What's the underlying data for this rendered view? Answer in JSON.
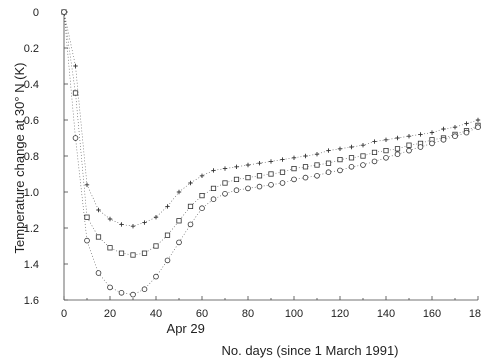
{
  "chart_data": {
    "type": "scatter",
    "title": "",
    "xlabel": "No. days (since 1 March 1991)",
    "ylabel": "Temperature change at 30° N (K)",
    "xlim": [
      0,
      180
    ],
    "ylim": [
      0,
      1.6
    ],
    "y_inverted": true,
    "grid": false,
    "x_ticks": [
      "0",
      "20",
      "40",
      "60",
      "80",
      "100",
      "120",
      "140",
      "160",
      "180"
    ],
    "y_ticks": [
      "0",
      "0.2",
      "0.4",
      "0.6",
      "0.8",
      "1.0",
      "1.2",
      "1.4",
      "1.6"
    ],
    "annotation": "Apr 29",
    "annotation_x": 59,
    "series": [
      {
        "marker": "plus",
        "fit_curve": true,
        "x": [
          0,
          5,
          10,
          15,
          20,
          25,
          30,
          35,
          40,
          45,
          50,
          55,
          60,
          65,
          70,
          75,
          80,
          85,
          90,
          95,
          100,
          105,
          110,
          115,
          120,
          125,
          130,
          135,
          140,
          145,
          150,
          155,
          160,
          165,
          170,
          175,
          180
        ],
        "y": [
          0.0,
          0.3,
          0.96,
          1.1,
          1.15,
          1.18,
          1.19,
          1.17,
          1.14,
          1.08,
          1.0,
          0.95,
          0.91,
          0.88,
          0.87,
          0.86,
          0.85,
          0.84,
          0.83,
          0.82,
          0.81,
          0.8,
          0.79,
          0.77,
          0.76,
          0.75,
          0.74,
          0.72,
          0.71,
          0.7,
          0.69,
          0.68,
          0.67,
          0.65,
          0.64,
          0.62,
          0.6
        ]
      },
      {
        "marker": "square",
        "fit_curve": true,
        "x": [
          0,
          5,
          10,
          15,
          20,
          25,
          30,
          35,
          40,
          45,
          50,
          55,
          60,
          65,
          70,
          75,
          80,
          85,
          90,
          95,
          100,
          105,
          110,
          115,
          120,
          125,
          130,
          135,
          140,
          145,
          150,
          155,
          160,
          165,
          170,
          175,
          180
        ],
        "y": [
          0.0,
          0.45,
          1.14,
          1.25,
          1.31,
          1.34,
          1.35,
          1.34,
          1.3,
          1.24,
          1.16,
          1.08,
          1.02,
          0.98,
          0.95,
          0.93,
          0.92,
          0.91,
          0.9,
          0.89,
          0.87,
          0.86,
          0.85,
          0.84,
          0.82,
          0.81,
          0.8,
          0.78,
          0.77,
          0.76,
          0.74,
          0.73,
          0.71,
          0.7,
          0.68,
          0.66,
          0.63
        ]
      },
      {
        "marker": "circle",
        "fit_curve": true,
        "x": [
          0,
          5,
          10,
          15,
          20,
          25,
          30,
          35,
          40,
          45,
          50,
          55,
          60,
          65,
          70,
          75,
          80,
          85,
          90,
          95,
          100,
          105,
          110,
          115,
          120,
          125,
          130,
          135,
          140,
          145,
          150,
          155,
          160,
          165,
          170,
          175,
          180
        ],
        "y": [
          0.0,
          0.7,
          1.27,
          1.45,
          1.53,
          1.56,
          1.57,
          1.54,
          1.47,
          1.38,
          1.28,
          1.18,
          1.09,
          1.04,
          1.01,
          0.99,
          0.98,
          0.97,
          0.96,
          0.95,
          0.93,
          0.92,
          0.91,
          0.89,
          0.88,
          0.86,
          0.85,
          0.83,
          0.81,
          0.79,
          0.77,
          0.75,
          0.73,
          0.71,
          0.69,
          0.67,
          0.64
        ]
      }
    ]
  }
}
